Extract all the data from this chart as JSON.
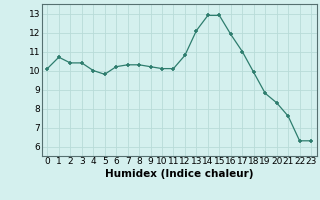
{
  "x": [
    0,
    1,
    2,
    3,
    4,
    5,
    6,
    7,
    8,
    9,
    10,
    11,
    12,
    13,
    14,
    15,
    16,
    17,
    18,
    19,
    20,
    21,
    22,
    23
  ],
  "y": [
    10.1,
    10.7,
    10.4,
    10.4,
    10.0,
    9.8,
    10.2,
    10.3,
    10.3,
    10.2,
    10.1,
    10.1,
    10.8,
    12.1,
    12.9,
    12.9,
    11.9,
    11.0,
    9.9,
    8.8,
    8.3,
    7.6,
    6.3,
    6.3
  ],
  "line_color": "#2e7d6e",
  "marker_color": "#2e7d6e",
  "bg_color": "#d4f0ee",
  "grid_color": "#b8dbd8",
  "xlabel": "Humidex (Indice chaleur)",
  "ylim": [
    5.5,
    13.5
  ],
  "xlim": [
    -0.5,
    23.5
  ],
  "yticks": [
    6,
    7,
    8,
    9,
    10,
    11,
    12,
    13
  ],
  "xticks": [
    0,
    1,
    2,
    3,
    4,
    5,
    6,
    7,
    8,
    9,
    10,
    11,
    12,
    13,
    14,
    15,
    16,
    17,
    18,
    19,
    20,
    21,
    22,
    23
  ],
  "xlabel_fontsize": 7.5,
  "tick_fontsize": 6.5
}
